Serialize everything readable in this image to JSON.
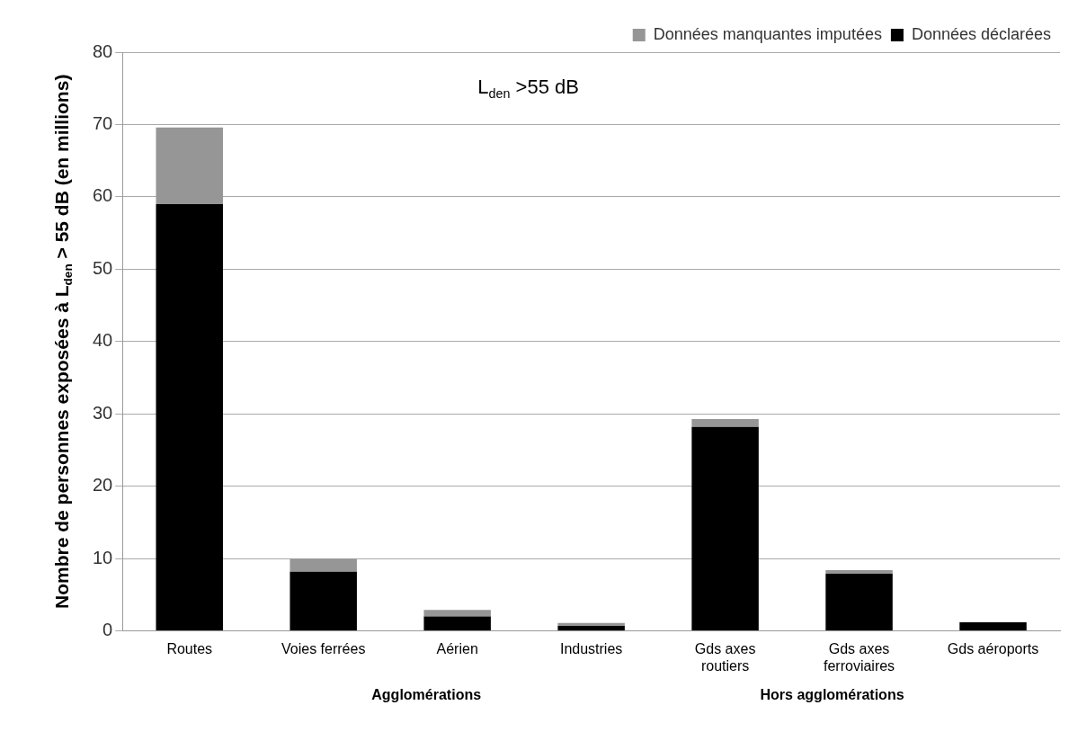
{
  "chart_data": {
    "type": "bar",
    "stacked": true,
    "ylabel": "Nombre de personnes exposées à L$_{den}$ > 55 dB (en millions)",
    "annotations": [
      "L$_{den}$ >55 dB",
      "Agglomérations",
      "Hors agglomérations"
    ],
    "categories": [
      "Routes",
      "Voies ferrées",
      "Aérien",
      "Industries",
      "Gds axes routiers",
      "Gds axes ferroviaires",
      "Gds aéroports"
    ],
    "series": [
      {
        "name": "Données déclarées",
        "color": "#000000",
        "values": [
          59,
          8.2,
          2.0,
          0.7,
          28.2,
          7.9,
          1.2
        ]
      },
      {
        "name": "Données manquantes imputées",
        "color": "#969696",
        "values": [
          10.6,
          1.8,
          0.9,
          0.4,
          1.1,
          0.5,
          0
        ]
      }
    ],
    "ylim": [
      0,
      80
    ],
    "yticks": [
      0,
      10,
      20,
      30,
      40,
      50,
      60,
      70,
      80
    ],
    "grid": "y",
    "legend": "top right"
  }
}
